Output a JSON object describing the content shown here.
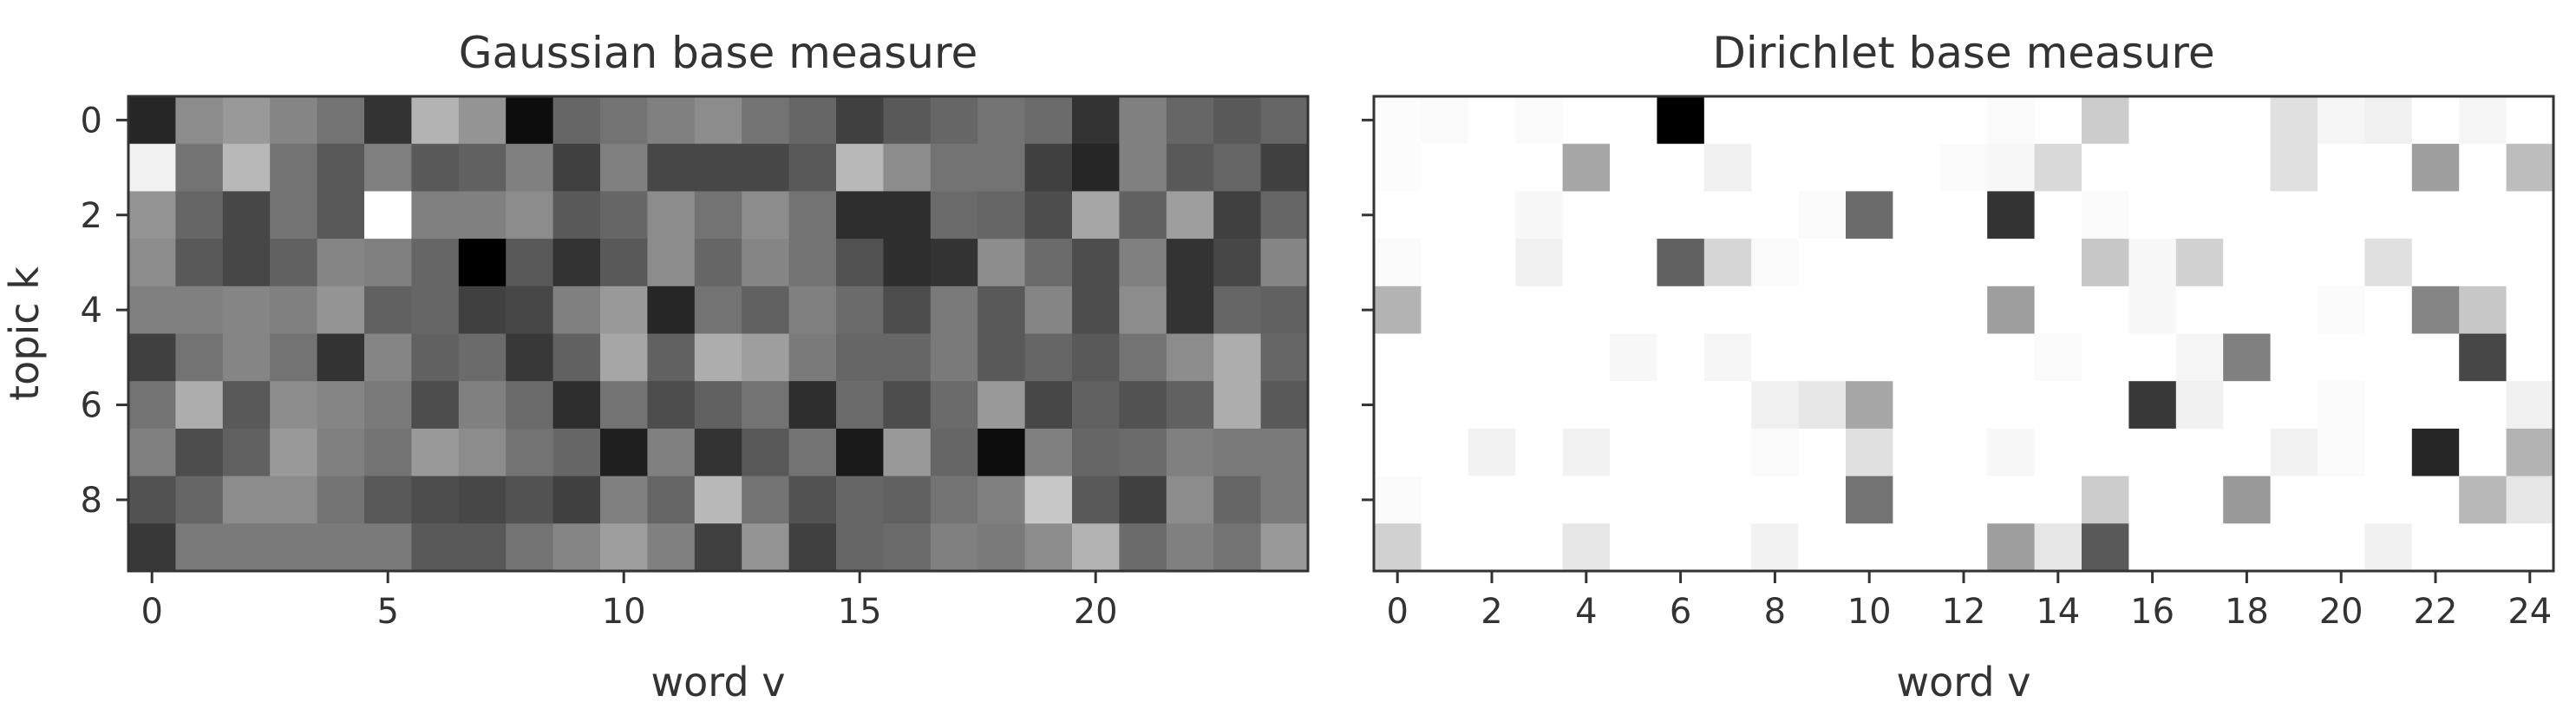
{
  "chart_data": [
    {
      "type": "heatmap",
      "title": "Gaussian base measure",
      "xlabel": "word v",
      "ylabel": "topic k",
      "colormap": "greys_reversed",
      "x": [
        0,
        1,
        2,
        3,
        4,
        5,
        6,
        7,
        8,
        9,
        10,
        11,
        12,
        13,
        14,
        15,
        16,
        17,
        18,
        19,
        20,
        21,
        22,
        23,
        24
      ],
      "y": [
        0,
        1,
        2,
        3,
        4,
        5,
        6,
        7,
        8,
        9
      ],
      "xticks": [
        0,
        5,
        10,
        15,
        20
      ],
      "xtick_labels": [
        "0",
        "5",
        "10",
        "15",
        "20"
      ],
      "yticks": [
        0,
        2,
        4,
        6,
        8
      ],
      "ytick_labels": [
        "0",
        "2",
        "4",
        "6",
        "8"
      ],
      "grid": false,
      "values": [
        [
          0.15,
          0.55,
          0.6,
          0.52,
          0.45,
          0.2,
          0.7,
          0.58,
          0.05,
          0.4,
          0.45,
          0.5,
          0.55,
          0.45,
          0.4,
          0.25,
          0.35,
          0.4,
          0.45,
          0.42,
          0.2,
          0.5,
          0.4,
          0.35,
          0.4
        ],
        [
          0.95,
          0.45,
          0.72,
          0.45,
          0.35,
          0.5,
          0.35,
          0.38,
          0.5,
          0.25,
          0.5,
          0.28,
          0.28,
          0.28,
          0.35,
          0.72,
          0.55,
          0.45,
          0.45,
          0.25,
          0.15,
          0.5,
          0.35,
          0.4,
          0.25
        ],
        [
          0.58,
          0.4,
          0.28,
          0.45,
          0.35,
          1.0,
          0.5,
          0.5,
          0.55,
          0.35,
          0.4,
          0.55,
          0.45,
          0.55,
          0.45,
          0.18,
          0.18,
          0.42,
          0.4,
          0.3,
          0.65,
          0.38,
          0.62,
          0.25,
          0.4
        ],
        [
          0.55,
          0.35,
          0.28,
          0.38,
          0.52,
          0.5,
          0.4,
          0.0,
          0.35,
          0.2,
          0.35,
          0.55,
          0.4,
          0.52,
          0.45,
          0.32,
          0.18,
          0.2,
          0.55,
          0.42,
          0.3,
          0.5,
          0.2,
          0.28,
          0.52
        ],
        [
          0.5,
          0.5,
          0.52,
          0.5,
          0.58,
          0.38,
          0.4,
          0.25,
          0.28,
          0.5,
          0.6,
          0.15,
          0.45,
          0.38,
          0.5,
          0.42,
          0.3,
          0.48,
          0.35,
          0.52,
          0.3,
          0.55,
          0.2,
          0.4,
          0.38
        ],
        [
          0.25,
          0.45,
          0.52,
          0.45,
          0.2,
          0.52,
          0.38,
          0.42,
          0.22,
          0.38,
          0.65,
          0.38,
          0.68,
          0.62,
          0.48,
          0.4,
          0.4,
          0.48,
          0.35,
          0.4,
          0.35,
          0.45,
          0.55,
          0.68,
          0.4
        ],
        [
          0.45,
          0.68,
          0.35,
          0.55,
          0.52,
          0.48,
          0.3,
          0.5,
          0.42,
          0.18,
          0.45,
          0.3,
          0.38,
          0.45,
          0.18,
          0.42,
          0.3,
          0.42,
          0.6,
          0.28,
          0.38,
          0.32,
          0.38,
          0.68,
          0.35
        ],
        [
          0.5,
          0.3,
          0.38,
          0.6,
          0.5,
          0.45,
          0.6,
          0.55,
          0.45,
          0.4,
          0.12,
          0.5,
          0.2,
          0.35,
          0.45,
          0.1,
          0.6,
          0.4,
          0.05,
          0.5,
          0.4,
          0.42,
          0.5,
          0.48,
          0.48
        ],
        [
          0.32,
          0.4,
          0.55,
          0.55,
          0.45,
          0.35,
          0.3,
          0.28,
          0.32,
          0.25,
          0.5,
          0.4,
          0.72,
          0.45,
          0.32,
          0.4,
          0.38,
          0.45,
          0.5,
          0.78,
          0.35,
          0.25,
          0.55,
          0.4,
          0.48
        ],
        [
          0.22,
          0.48,
          0.48,
          0.48,
          0.48,
          0.48,
          0.35,
          0.35,
          0.45,
          0.52,
          0.62,
          0.5,
          0.25,
          0.58,
          0.25,
          0.4,
          0.42,
          0.5,
          0.48,
          0.55,
          0.7,
          0.42,
          0.5,
          0.45,
          0.6
        ]
      ]
    },
    {
      "type": "heatmap",
      "title": "Dirichlet base measure",
      "xlabel": "word v",
      "ylabel": "",
      "colormap": "greys",
      "x": [
        0,
        1,
        2,
        3,
        4,
        5,
        6,
        7,
        8,
        9,
        10,
        11,
        12,
        13,
        14,
        15,
        16,
        17,
        18,
        19,
        20,
        21,
        22,
        23,
        24
      ],
      "y": [
        0,
        1,
        2,
        3,
        4,
        5,
        6,
        7,
        8,
        9
      ],
      "xticks": [
        0,
        2,
        4,
        6,
        8,
        10,
        12,
        14,
        16,
        18,
        20,
        22,
        24
      ],
      "xtick_labels": [
        "0",
        "2",
        "4",
        "6",
        "8",
        "10",
        "12",
        "14",
        "16",
        "18",
        "20",
        "22",
        "24"
      ],
      "yticks": [
        0,
        2,
        4,
        6,
        8
      ],
      "ytick_labels": [],
      "grid": false,
      "values": [
        [
          0.01,
          0.02,
          0.0,
          0.02,
          0.0,
          0.0,
          1.0,
          0.0,
          0.0,
          0.0,
          0.0,
          0.0,
          0.0,
          0.02,
          0.0,
          0.2,
          0.0,
          0.0,
          0.0,
          0.12,
          0.04,
          0.06,
          0.0,
          0.04,
          0.0
        ],
        [
          0.01,
          0.0,
          0.0,
          0.0,
          0.35,
          0.0,
          0.0,
          0.06,
          0.0,
          0.0,
          0.0,
          0.0,
          0.02,
          0.03,
          0.15,
          0.0,
          0.0,
          0.0,
          0.0,
          0.12,
          0.0,
          0.0,
          0.38,
          0.0,
          0.26
        ],
        [
          0.0,
          0.0,
          0.0,
          0.03,
          0.0,
          0.0,
          0.0,
          0.0,
          0.0,
          0.02,
          0.58,
          0.0,
          0.0,
          0.8,
          0.0,
          0.02,
          0.0,
          0.0,
          0.0,
          0.0,
          0.0,
          0.0,
          0.0,
          0.0,
          0.0
        ],
        [
          0.02,
          0.0,
          0.0,
          0.06,
          0.0,
          0.0,
          0.62,
          0.16,
          0.02,
          0.0,
          0.0,
          0.0,
          0.0,
          0.0,
          0.0,
          0.22,
          0.03,
          0.18,
          0.0,
          0.0,
          0.0,
          0.12,
          0.0,
          0.0,
          0.0
        ],
        [
          0.3,
          0.0,
          0.0,
          0.0,
          0.0,
          0.0,
          0.0,
          0.0,
          0.0,
          0.0,
          0.0,
          0.0,
          0.0,
          0.38,
          0.0,
          0.0,
          0.03,
          0.0,
          0.0,
          0.0,
          0.02,
          0.0,
          0.48,
          0.22,
          0.0
        ],
        [
          0.0,
          0.0,
          0.0,
          0.0,
          0.0,
          0.03,
          0.0,
          0.04,
          0.0,
          0.0,
          0.0,
          0.0,
          0.0,
          0.0,
          0.02,
          0.0,
          0.0,
          0.04,
          0.5,
          0.0,
          0.0,
          0.0,
          0.0,
          0.72,
          0.0
        ],
        [
          0.0,
          0.0,
          0.0,
          0.0,
          0.0,
          0.0,
          0.0,
          0.0,
          0.06,
          0.1,
          0.35,
          0.0,
          0.0,
          0.0,
          0.0,
          0.0,
          0.78,
          0.06,
          0.0,
          0.0,
          0.02,
          0.0,
          0.0,
          0.0,
          0.06
        ],
        [
          0.0,
          0.0,
          0.05,
          0.0,
          0.05,
          0.0,
          0.0,
          0.0,
          0.02,
          0.0,
          0.12,
          0.0,
          0.0,
          0.03,
          0.0,
          0.0,
          0.0,
          0.0,
          0.0,
          0.05,
          0.02,
          0.0,
          0.85,
          0.0,
          0.3
        ],
        [
          0.02,
          0.0,
          0.0,
          0.0,
          0.0,
          0.0,
          0.0,
          0.0,
          0.0,
          0.0,
          0.55,
          0.0,
          0.0,
          0.0,
          0.0,
          0.2,
          0.0,
          0.0,
          0.4,
          0.0,
          0.0,
          0.0,
          0.0,
          0.28,
          0.1
        ],
        [
          0.18,
          0.0,
          0.0,
          0.0,
          0.1,
          0.0,
          0.0,
          0.0,
          0.05,
          0.0,
          0.0,
          0.0,
          0.0,
          0.38,
          0.1,
          0.65,
          0.0,
          0.0,
          0.0,
          0.0,
          0.0,
          0.06,
          0.0,
          0.0,
          0.0
        ]
      ]
    }
  ]
}
